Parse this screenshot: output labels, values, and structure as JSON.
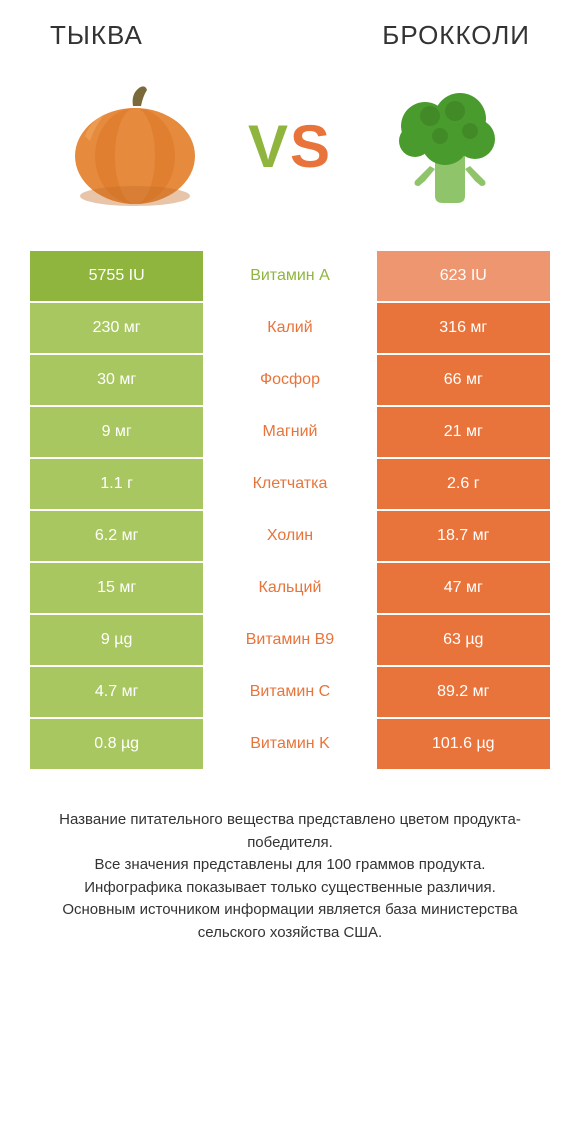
{
  "colors": {
    "left_win": "#8fb53f",
    "left_lose": "#a8c760",
    "right_win": "#e8743b",
    "right_lose": "#ed9670",
    "mid_left_text": "#8fb53f",
    "mid_right_text": "#e8743b",
    "vs_v": "#8fb53f",
    "vs_s": "#e8743b",
    "pumpkin_body": "#e68a3e",
    "pumpkin_shadow": "#c66f28",
    "pumpkin_stem": "#7a6a3a",
    "broccoli_head": "#4a9b2e",
    "broccoli_head_dark": "#3a7a22",
    "broccoli_stem": "#8fc46a"
  },
  "header": {
    "left_title": "ТЫКВА",
    "right_title": "БРОККОЛИ",
    "vs_v": "V",
    "vs_s": "S"
  },
  "rows": [
    {
      "name": "Витамин A",
      "left": "5755 IU",
      "right": "623 IU",
      "winner": "left"
    },
    {
      "name": "Калий",
      "left": "230 мг",
      "right": "316 мг",
      "winner": "right"
    },
    {
      "name": "Фосфор",
      "left": "30 мг",
      "right": "66 мг",
      "winner": "right"
    },
    {
      "name": "Магний",
      "left": "9 мг",
      "right": "21 мг",
      "winner": "right"
    },
    {
      "name": "Клетчатка",
      "left": "1.1 г",
      "right": "2.6 г",
      "winner": "right"
    },
    {
      "name": "Холин",
      "left": "6.2 мг",
      "right": "18.7 мг",
      "winner": "right"
    },
    {
      "name": "Кальций",
      "left": "15 мг",
      "right": "47 мг",
      "winner": "right"
    },
    {
      "name": "Витамин B9",
      "left": "9 µg",
      "right": "63 µg",
      "winner": "right"
    },
    {
      "name": "Витамин C",
      "left": "4.7 мг",
      "right": "89.2 мг",
      "winner": "right"
    },
    {
      "name": "Витамин K",
      "left": "0.8 µg",
      "right": "101.6 µg",
      "winner": "right"
    }
  ],
  "footnote": "Название питательного вещества представлено цветом продукта-победителя.\nВсе значения представлены для 100 граммов продукта.\nИнфографика показывает только существенные различия.\nОсновным источником информации является база министерства сельского хозяйства США."
}
